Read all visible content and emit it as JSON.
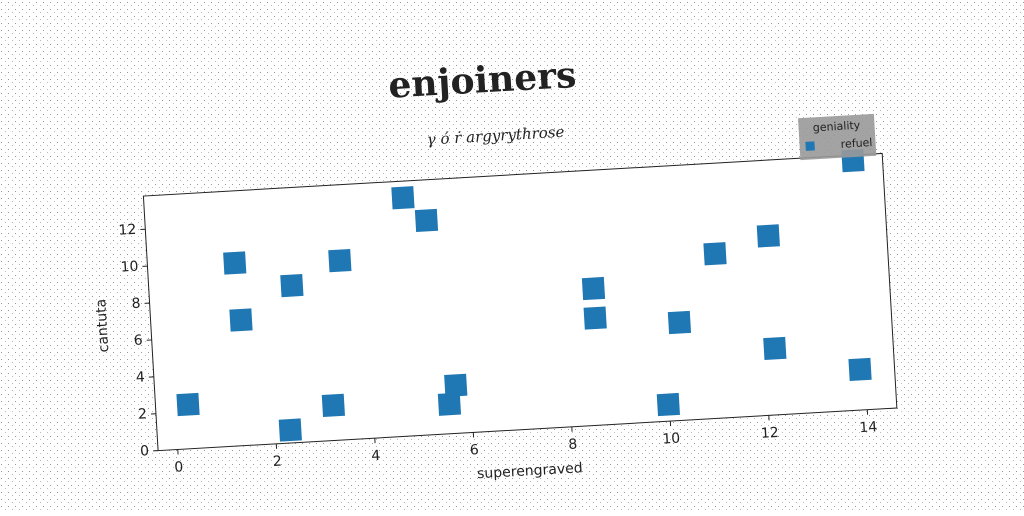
{
  "chart_data": {
    "type": "scatter",
    "title": "enjoiners",
    "subtitle": "γ ό ṙ argyrythrose",
    "x_label": "superengraved",
    "y_label": "cantuta",
    "legend_title": "geniality",
    "legend_position": "upper right",
    "series": [
      {
        "name": "refuel",
        "color": "#1f77b4",
        "x": [
          0.26,
          1.37,
          1.43,
          2.5,
          2.3,
          3.2,
          3.5,
          4.85,
          5.3,
          5.55,
          5.7,
          8.6,
          8.6,
          9.98,
          10.3,
          11.1,
          12.2,
          12.2,
          13.9,
          14.0
        ],
        "values": [
          2.4,
          9.9,
          6.8,
          8.5,
          0.7,
          1.9,
          9.7,
          12.9,
          11.6,
          1.6,
          2.6,
          7.4,
          5.8,
          0.9,
          5.3,
          8.9,
          9.7,
          3.6,
          2.2,
          13.5
        ]
      }
    ],
    "xlim": [
      -0.4,
      14.6
    ],
    "ylim": [
      0,
      13.8
    ],
    "xticks": [
      0,
      2,
      4,
      6,
      8,
      10,
      12,
      14
    ],
    "yticks": [
      0,
      2,
      4,
      6,
      8,
      10,
      12
    ]
  }
}
